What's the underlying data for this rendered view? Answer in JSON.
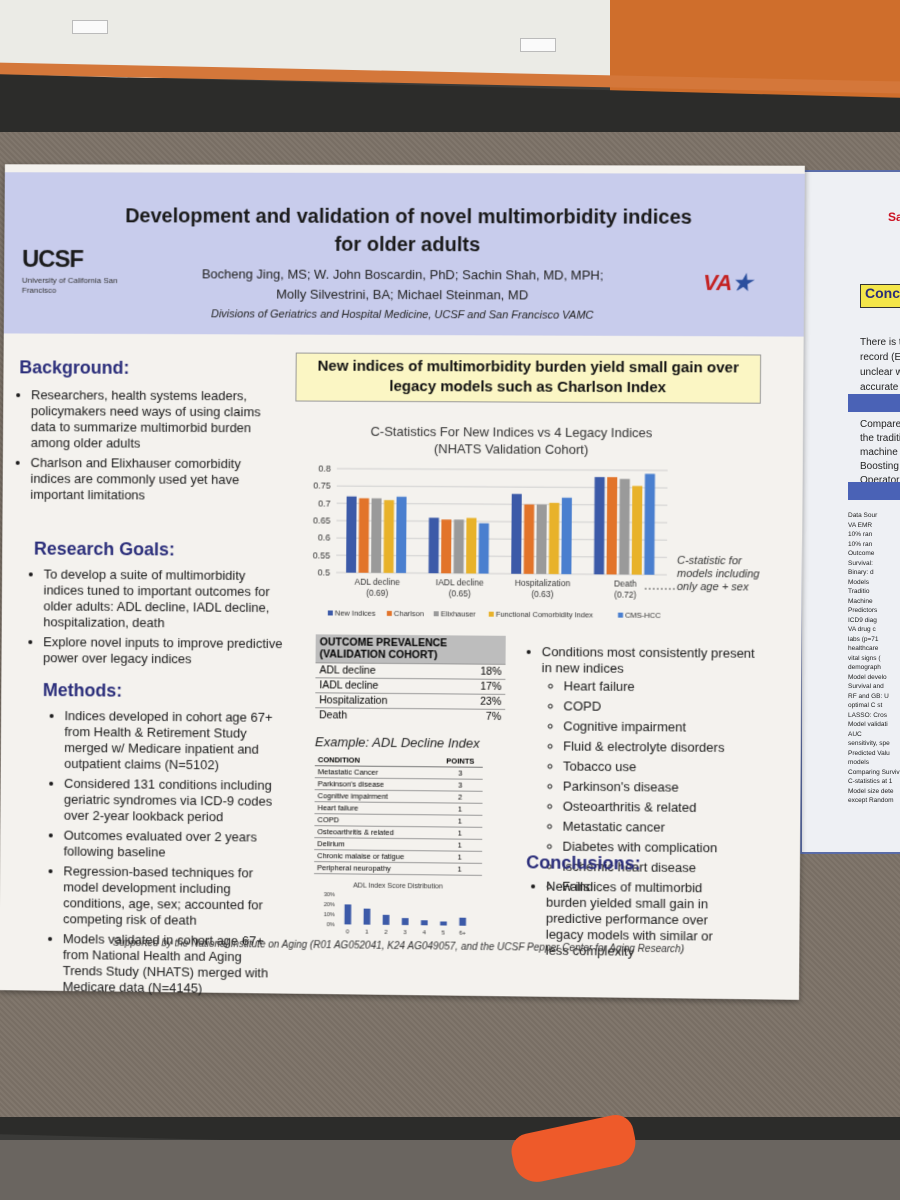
{
  "poster": {
    "title": "Development and validation of novel multimorbidity indices for older adults",
    "authors_line1": "Bocheng Jing, MS; W. John Boscardin, PhD; Sachin Shah, MD, MPH;",
    "authors_line2": "Molly Silvestrini, BA; Michael Steinman, MD",
    "affiliation": "Divisions of Geriatrics and Hospital Medicine, UCSF and San Francisco VAMC",
    "ucsf_logo": "UCSF",
    "ucsf_sub": "University of California San Francisco",
    "va_logo": "VA",
    "background": {
      "heading": "Background:",
      "items": [
        "Researchers, health systems leaders, policymakers need ways of using claims data to summarize multimorbid burden among older adults",
        "Charlson and Elixhauser comorbidity indices are commonly used yet have important limitations"
      ]
    },
    "goals": {
      "heading": "Research Goals:",
      "items": [
        "To develop a suite of multimorbidity indices tuned to important outcomes for older adults: ADL decline, IADL decline, hospitalization, death",
        "Explore novel inputs to improve predictive power over legacy indices"
      ]
    },
    "methods": {
      "heading": "Methods:",
      "items": [
        "Indices developed in cohort age 67+ from Health & Retirement Study merged w/ Medicare inpatient and outpatient claims (N=5102)",
        "Considered 131 conditions including geriatric syndromes via ICD-9 codes over 2-year lookback period",
        "Outcomes evaluated over 2 years following baseline",
        "Regression-based techniques for model development including conditions, age, sex; accounted for competing risk of death",
        "Models validated in cohort age 67+ from National Health and Aging Trends Study (NHATS) merged with Medicare data (N=4145)"
      ]
    },
    "banner": "New indices of multimorbidity burden yield small gain over legacy models such as Charlson Index",
    "chart_note": "C-statistic for models including only age + sex",
    "prevalence": {
      "header1": "OUTCOME PREVALENCE",
      "header2": "(VALIDATION COHORT)",
      "rows": [
        {
          "label": "ADL decline",
          "value": "18%"
        },
        {
          "label": "IADL decline",
          "value": "17%"
        },
        {
          "label": "Hospitalization",
          "value": "23%"
        },
        {
          "label": "Death",
          "value": "7%"
        }
      ]
    },
    "example": {
      "title": "Example: ADL Decline Index",
      "col1": "CONDITION",
      "col2": "POINTS",
      "rows": [
        {
          "c": "Metastatic Cancer",
          "p": "3"
        },
        {
          "c": "Parkinson's disease",
          "p": "3"
        },
        {
          "c": "Cognitive impairment",
          "p": "2"
        },
        {
          "c": "Heart failure",
          "p": "1"
        },
        {
          "c": "COPD",
          "p": "1"
        },
        {
          "c": "Osteoarthritis & related",
          "p": "1"
        },
        {
          "c": "Delirium",
          "p": "1"
        },
        {
          "c": "Chronic malaise or fatigue",
          "p": "1"
        },
        {
          "c": "Peripheral neuropathy",
          "p": "1"
        }
      ]
    },
    "conditions": {
      "intro": "Conditions most consistently present in new indices",
      "items": [
        "Heart failure",
        "COPD",
        "Cognitive impairment",
        "Fluid & electrolyte disorders",
        "Tobacco use",
        "Parkinson's disease",
        "Osteoarthritis & related",
        "Metastatic cancer",
        "Diabetes with complication",
        "Ischemic heart disease",
        "Falls"
      ]
    },
    "conclusions": {
      "heading": "Conclusions:",
      "items": [
        "New indices of multimorbid burden yielded small gain in predictive performance over legacy models with similar or less complexity"
      ]
    },
    "footer": "Supported by the National Institute on Aging (R01 AG052041, K24 AG049057, and the UCSF Pepper Center for Aging Research)"
  },
  "right_poster": {
    "logo": "San",
    "conclusions_label": "Conclu",
    "lines1": [
      "There is t",
      "record (El",
      "unclear w",
      "accurate p"
    ],
    "lines2": [
      "Compare",
      "the traditi",
      "machine le",
      "Boosting (G",
      "Operator o"
    ],
    "small_lines": [
      "Data Sour",
      "VA EMR",
      "10% ran",
      "10% ran",
      "Outcome",
      "Survival:",
      "Binary: d",
      "Models",
      "Traditio",
      "Machine",
      "Predictors",
      "ICD9 diag",
      "VA drug c",
      "labs (p=71",
      "healthcare",
      "vital signs (",
      "demograph",
      "Model develo",
      "Survival and",
      "RF and GB: U",
      "optimal C st",
      "LASSO: Cros",
      "Model validati",
      "AUC",
      "sensitivity, spe",
      "Predicted Valu",
      "models",
      "Comparing Surviv",
      "C-statistics at 1",
      "Model size dete",
      "except Random"
    ]
  },
  "chart_data": [
    {
      "type": "bar",
      "title": "C-Statistics For New Indices vs 4 Legacy Indices",
      "subtitle": "(NHATS Validation Cohort)",
      "categories": [
        "ADL decline",
        "IADL decline",
        "Hospitalization",
        "Death"
      ],
      "category_notes": [
        "(0.69)",
        "(0.65)",
        "(0.63)",
        "(0.72)"
      ],
      "ylim": [
        0.5,
        0.8
      ],
      "yticks": [
        "0.8",
        "0.75",
        "0.7",
        "0.65",
        "0.6",
        "0.55",
        "0.5"
      ],
      "series": [
        {
          "name": "New Indices",
          "color": "#3c5aa8",
          "values": [
            0.72,
            0.66,
            0.73,
            0.78
          ]
        },
        {
          "name": "Charlson",
          "color": "#e2742a",
          "values": [
            0.715,
            0.655,
            0.7,
            0.78
          ]
        },
        {
          "name": "Elixhauser",
          "color": "#9a9a9a",
          "values": [
            0.715,
            0.655,
            0.7,
            0.775
          ]
        },
        {
          "name": "Functional Comorbidity Index",
          "color": "#e8b22a",
          "values": [
            0.71,
            0.66,
            0.705,
            0.755
          ]
        },
        {
          "name": "CMS-HCC",
          "color": "#4a7fcf",
          "values": [
            0.72,
            0.645,
            0.72,
            0.79
          ]
        }
      ]
    },
    {
      "type": "bar",
      "title": "ADL Index Score Distribution",
      "categories": [
        "0",
        "1",
        "2",
        "3",
        "4",
        "5",
        "6+"
      ],
      "values": [
        20,
        16,
        10,
        7,
        5,
        4,
        8
      ],
      "ylim": [
        0,
        30
      ],
      "yticks": [
        "30%",
        "20%",
        "10%",
        "0%"
      ]
    }
  ]
}
